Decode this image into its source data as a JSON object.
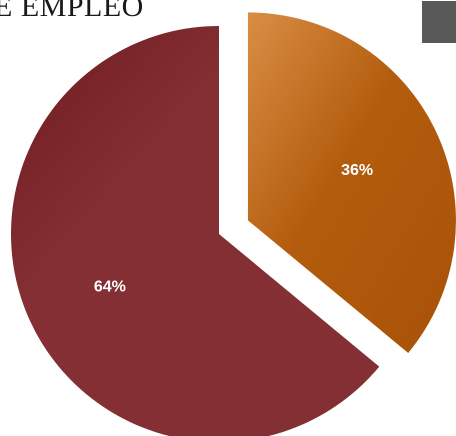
{
  "chart_data": {
    "type": "pie",
    "title": "E EMPLEO",
    "slices": [
      {
        "label": "36%",
        "value": 36,
        "color": "#b35c0d",
        "exploded": true
      },
      {
        "label": "64%",
        "value": 64,
        "color": "#832f33",
        "exploded": false
      }
    ],
    "legend_color": "#595959"
  }
}
